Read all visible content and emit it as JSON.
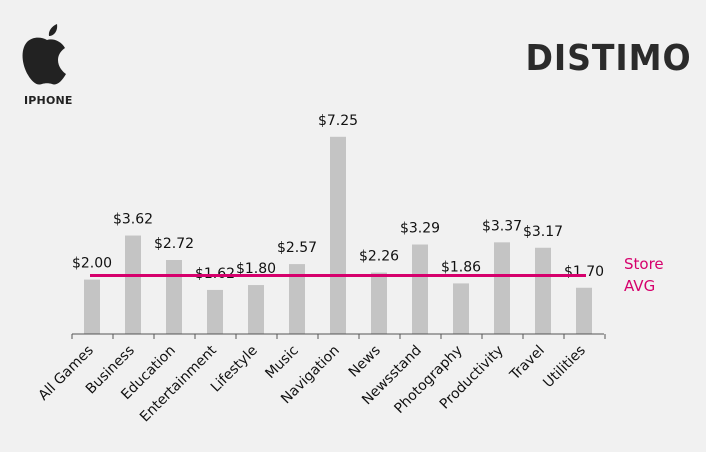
{
  "header": {
    "platform": "IPHONE",
    "brand": "DISTIMO"
  },
  "icons": {
    "platform_logo": "apple-logo-icon"
  },
  "colors": {
    "bar": "#c4c4c4",
    "avg_line": "#d6006c",
    "axis": "#555555",
    "background": "#f1f1f1"
  },
  "chart_data": {
    "type": "bar",
    "title": "",
    "xlabel": "",
    "ylabel": "",
    "categories": [
      "All Games",
      "Business",
      "Education",
      "Entertainment",
      "Lifestyle",
      "Music",
      "Navigation",
      "News",
      "Newsstand",
      "Photography",
      "Productivity",
      "Travel",
      "Utilities"
    ],
    "values": [
      2.0,
      3.62,
      2.72,
      1.62,
      1.8,
      2.57,
      7.25,
      2.26,
      3.29,
      1.86,
      3.37,
      3.17,
      1.7
    ],
    "data_labels": [
      "$2.00",
      "$3.62",
      "$2.72",
      "$1.62",
      "$1.80",
      "$2.57",
      "$7.25",
      "$2.26",
      "$3.29",
      "$1.86",
      "$3.37",
      "$3.17",
      "$1.70"
    ],
    "ylim": [
      0,
      7.5
    ],
    "grid": false,
    "reference_line": {
      "value": 2.15,
      "label_line1": "Store",
      "label_line2": "AVG"
    }
  }
}
